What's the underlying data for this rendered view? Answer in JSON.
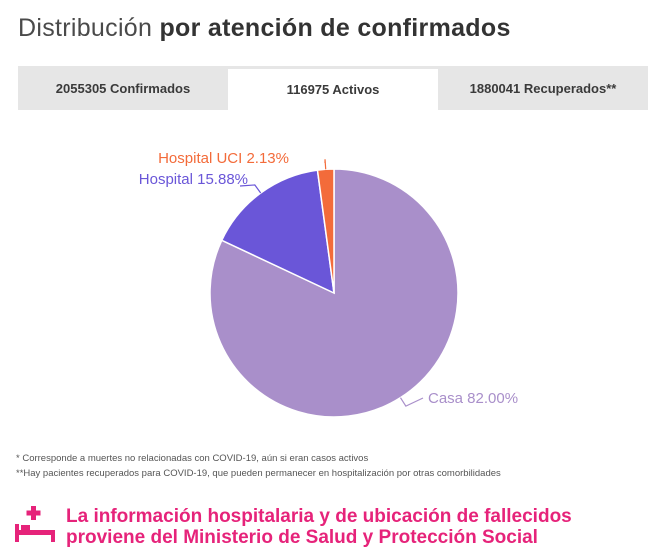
{
  "title": {
    "light": "Distribución",
    "bold": "por atención de confirmados"
  },
  "tabs": [
    {
      "label": "2055305 Confirmados",
      "active": false
    },
    {
      "label": "116975 Activos",
      "active": true
    },
    {
      "label": "1880041 Recuperados**",
      "active": false
    }
  ],
  "chart_data": {
    "type": "pie",
    "title": "",
    "slices": [
      {
        "label": "Casa",
        "value": 82.0,
        "display": "Casa 82.00%",
        "color": "#a98fca"
      },
      {
        "label": "Hospital",
        "value": 15.88,
        "display": "Hospital 15.88%",
        "color": "#6a56d8"
      },
      {
        "label": "Hospital UCI",
        "value": 2.13,
        "display": "Hospital UCI 2.13%",
        "color": "#f36b3a"
      }
    ]
  },
  "notes": {
    "line1": "* Corresponde a muertes no relacionadas con COVID-19, aún si eran casos activos",
    "line2": "**Hay pacientes recuperados para COVID-19, que pueden permanecer en hospitalización por otras comorbilidades"
  },
  "footer": {
    "line1": "La información hospitalaria y de ubicación de fallecidos",
    "line2": "proviene del Ministerio de Salud y Protección Social",
    "icon": "hospital-bed-icon",
    "color": "#e6237a"
  }
}
